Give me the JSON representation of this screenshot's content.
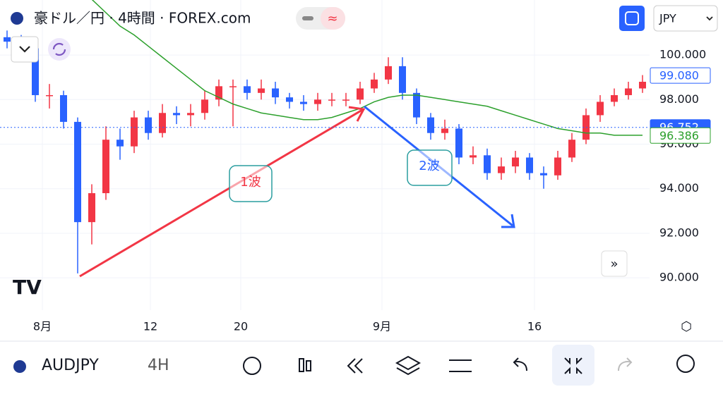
{
  "header": {
    "title": "豪ドル／円 · 4時間 · FOREX.com",
    "currency": "JPY"
  },
  "chart_data": {
    "type": "candlestick",
    "candles": [
      [
        100.8,
        101.1,
        100.3,
        100.6
      ],
      [
        100.6,
        100.9,
        100.0,
        100.3
      ],
      [
        100.3,
        100.5,
        97.9,
        98.2
      ],
      [
        98.2,
        98.7,
        97.6,
        98.2
      ],
      [
        98.2,
        98.4,
        96.7,
        97.0
      ],
      [
        97.0,
        97.2,
        90.2,
        92.5
      ],
      [
        92.5,
        94.2,
        91.5,
        93.8
      ],
      [
        93.8,
        96.8,
        93.5,
        96.2
      ],
      [
        96.2,
        96.7,
        95.3,
        95.9
      ],
      [
        95.9,
        97.5,
        95.6,
        97.2
      ],
      [
        97.2,
        97.5,
        96.2,
        96.5
      ],
      [
        96.5,
        97.8,
        96.3,
        97.4
      ],
      [
        97.4,
        97.7,
        96.9,
        97.3
      ],
      [
        97.3,
        97.8,
        96.8,
        97.4
      ],
      [
        97.4,
        98.4,
        97.1,
        98.0
      ],
      [
        98.0,
        98.9,
        97.7,
        98.6
      ],
      [
        98.6,
        98.9,
        96.8,
        98.6
      ],
      [
        98.6,
        98.9,
        98.0,
        98.3
      ],
      [
        98.3,
        98.9,
        98.0,
        98.5
      ],
      [
        98.5,
        98.8,
        97.8,
        98.1
      ],
      [
        98.1,
        98.3,
        97.6,
        97.9
      ],
      [
        97.9,
        98.2,
        97.5,
        97.8
      ],
      [
        97.8,
        98.3,
        97.5,
        98.0
      ],
      [
        98.0,
        98.3,
        97.7,
        98.0
      ],
      [
        98.0,
        98.3,
        97.7,
        98.0
      ],
      [
        98.0,
        98.8,
        97.8,
        98.5
      ],
      [
        98.5,
        99.2,
        98.3,
        98.9
      ],
      [
        98.9,
        99.9,
        98.7,
        99.5
      ],
      [
        99.5,
        99.9,
        98.0,
        98.3
      ],
      [
        98.3,
        98.5,
        96.9,
        97.2
      ],
      [
        97.2,
        97.4,
        96.2,
        96.5
      ],
      [
        96.5,
        97.1,
        96.2,
        96.7
      ],
      [
        96.7,
        96.9,
        95.1,
        95.4
      ],
      [
        95.4,
        95.9,
        95.1,
        95.5
      ],
      [
        95.5,
        95.8,
        94.4,
        94.7
      ],
      [
        94.7,
        95.4,
        94.4,
        95.0
      ],
      [
        95.0,
        95.7,
        94.7,
        95.4
      ],
      [
        95.4,
        95.6,
        94.4,
        94.7
      ],
      [
        94.7,
        95.0,
        94.0,
        94.6
      ],
      [
        94.6,
        95.7,
        94.4,
        95.4
      ],
      [
        95.4,
        96.5,
        95.2,
        96.2
      ],
      [
        96.2,
        97.6,
        96.0,
        97.3
      ],
      [
        97.3,
        98.2,
        97.0,
        97.9
      ],
      [
        97.9,
        98.5,
        97.7,
        98.2
      ],
      [
        98.2,
        98.8,
        98.0,
        98.5
      ],
      [
        98.5,
        99.1,
        98.3,
        98.8
      ]
    ],
    "moving_average": {
      "color": "#2ca02c",
      "values": [
        null,
        null,
        null,
        null,
        null,
        103.1,
        102.5,
        101.9,
        101.3,
        100.9,
        100.4,
        99.9,
        99.4,
        98.9,
        98.4,
        98.1,
        97.8,
        97.6,
        97.4,
        97.3,
        97.2,
        97.1,
        97.1,
        97.2,
        97.4,
        97.6,
        97.9,
        98.1,
        98.2,
        98.2,
        98.1,
        98.0,
        97.9,
        97.8,
        97.7,
        97.5,
        97.3,
        97.1,
        96.9,
        96.7,
        96.6,
        96.5,
        96.5,
        96.4,
        96.4,
        96.4
      ]
    },
    "up_color": "#f23645",
    "down_color": "#2962ff",
    "ylim": [
      88.55,
      102.47
    ],
    "yticks": [
      {
        "value": 90,
        "label": "90.000"
      },
      {
        "value": 92,
        "label": "92.000"
      },
      {
        "value": 94,
        "label": "94.000"
      },
      {
        "value": 96,
        "label": "96.000"
      },
      {
        "value": 98,
        "label": "98.000"
      },
      {
        "value": 100,
        "label": "100.000"
      }
    ],
    "xticks": [
      {
        "value": 2.5,
        "label": "8月"
      },
      {
        "value": 10.15,
        "label": "12"
      },
      {
        "value": 16.55,
        "label": "20"
      },
      {
        "value": 26.55,
        "label": "9月"
      },
      {
        "value": 37.35,
        "label": "16"
      }
    ],
    "last_price": {
      "value": 99.08,
      "label": "99.080"
    },
    "current_price": {
      "value": 96.752,
      "label": "96.752"
    },
    "ma_price": {
      "value": 96.386,
      "label": "96.386"
    },
    "annotations": [
      "1波",
      "2波"
    ]
  },
  "toolbar": {
    "symbol": "AUDJPY",
    "interval": "4H"
  }
}
